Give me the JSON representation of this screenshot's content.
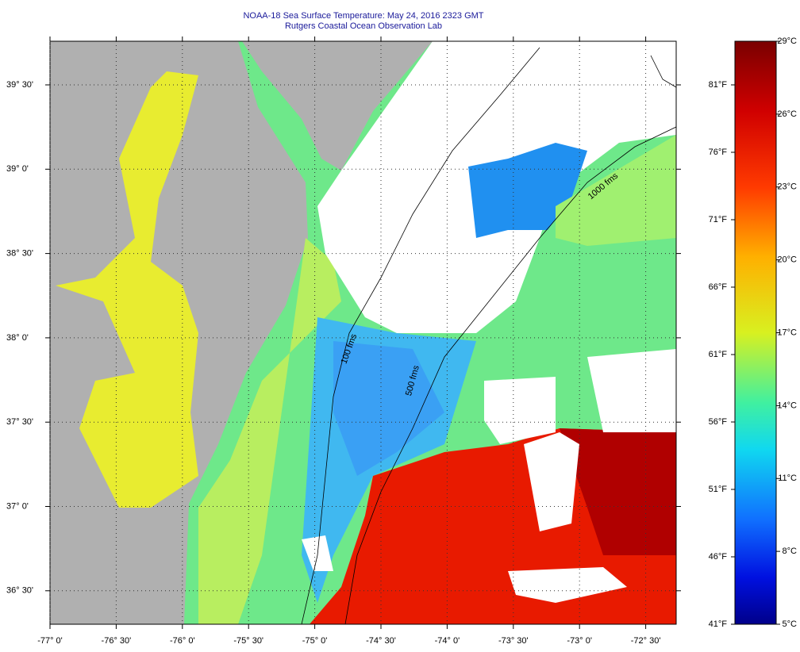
{
  "header": {
    "title": "NOAA-18 Sea Surface Temperature:  May 24, 2016 2323 GMT",
    "subtitle": "Rutgers Coastal Ocean Observation Lab"
  },
  "map": {
    "lat_labels": [
      "39° 30'",
      "39° 0'",
      "38° 30'",
      "38° 0'",
      "37° 30'",
      "37° 0'",
      "36° 30'"
    ],
    "lon_labels": [
      "-77° 0'",
      "-76° 30'",
      "-76° 0'",
      "-75° 30'",
      "-75° 0'",
      "-74° 30'",
      "-74° 0'",
      "-73° 30'",
      "-73° 0'",
      "-72° 30'"
    ],
    "contour_labels": [
      "100 fms",
      "500 fms",
      "1000 fms"
    ]
  },
  "colorbar": {
    "celsius_labels": [
      "29°C",
      "26°C",
      "23°C",
      "20°C",
      "17°C",
      "14°C",
      "11°C",
      "8°C",
      "5°C"
    ],
    "fahrenheit_labels": [
      "81°F",
      "76°F",
      "71°F",
      "66°F",
      "61°F",
      "56°F",
      "51°F",
      "46°F",
      "41°F"
    ]
  }
}
